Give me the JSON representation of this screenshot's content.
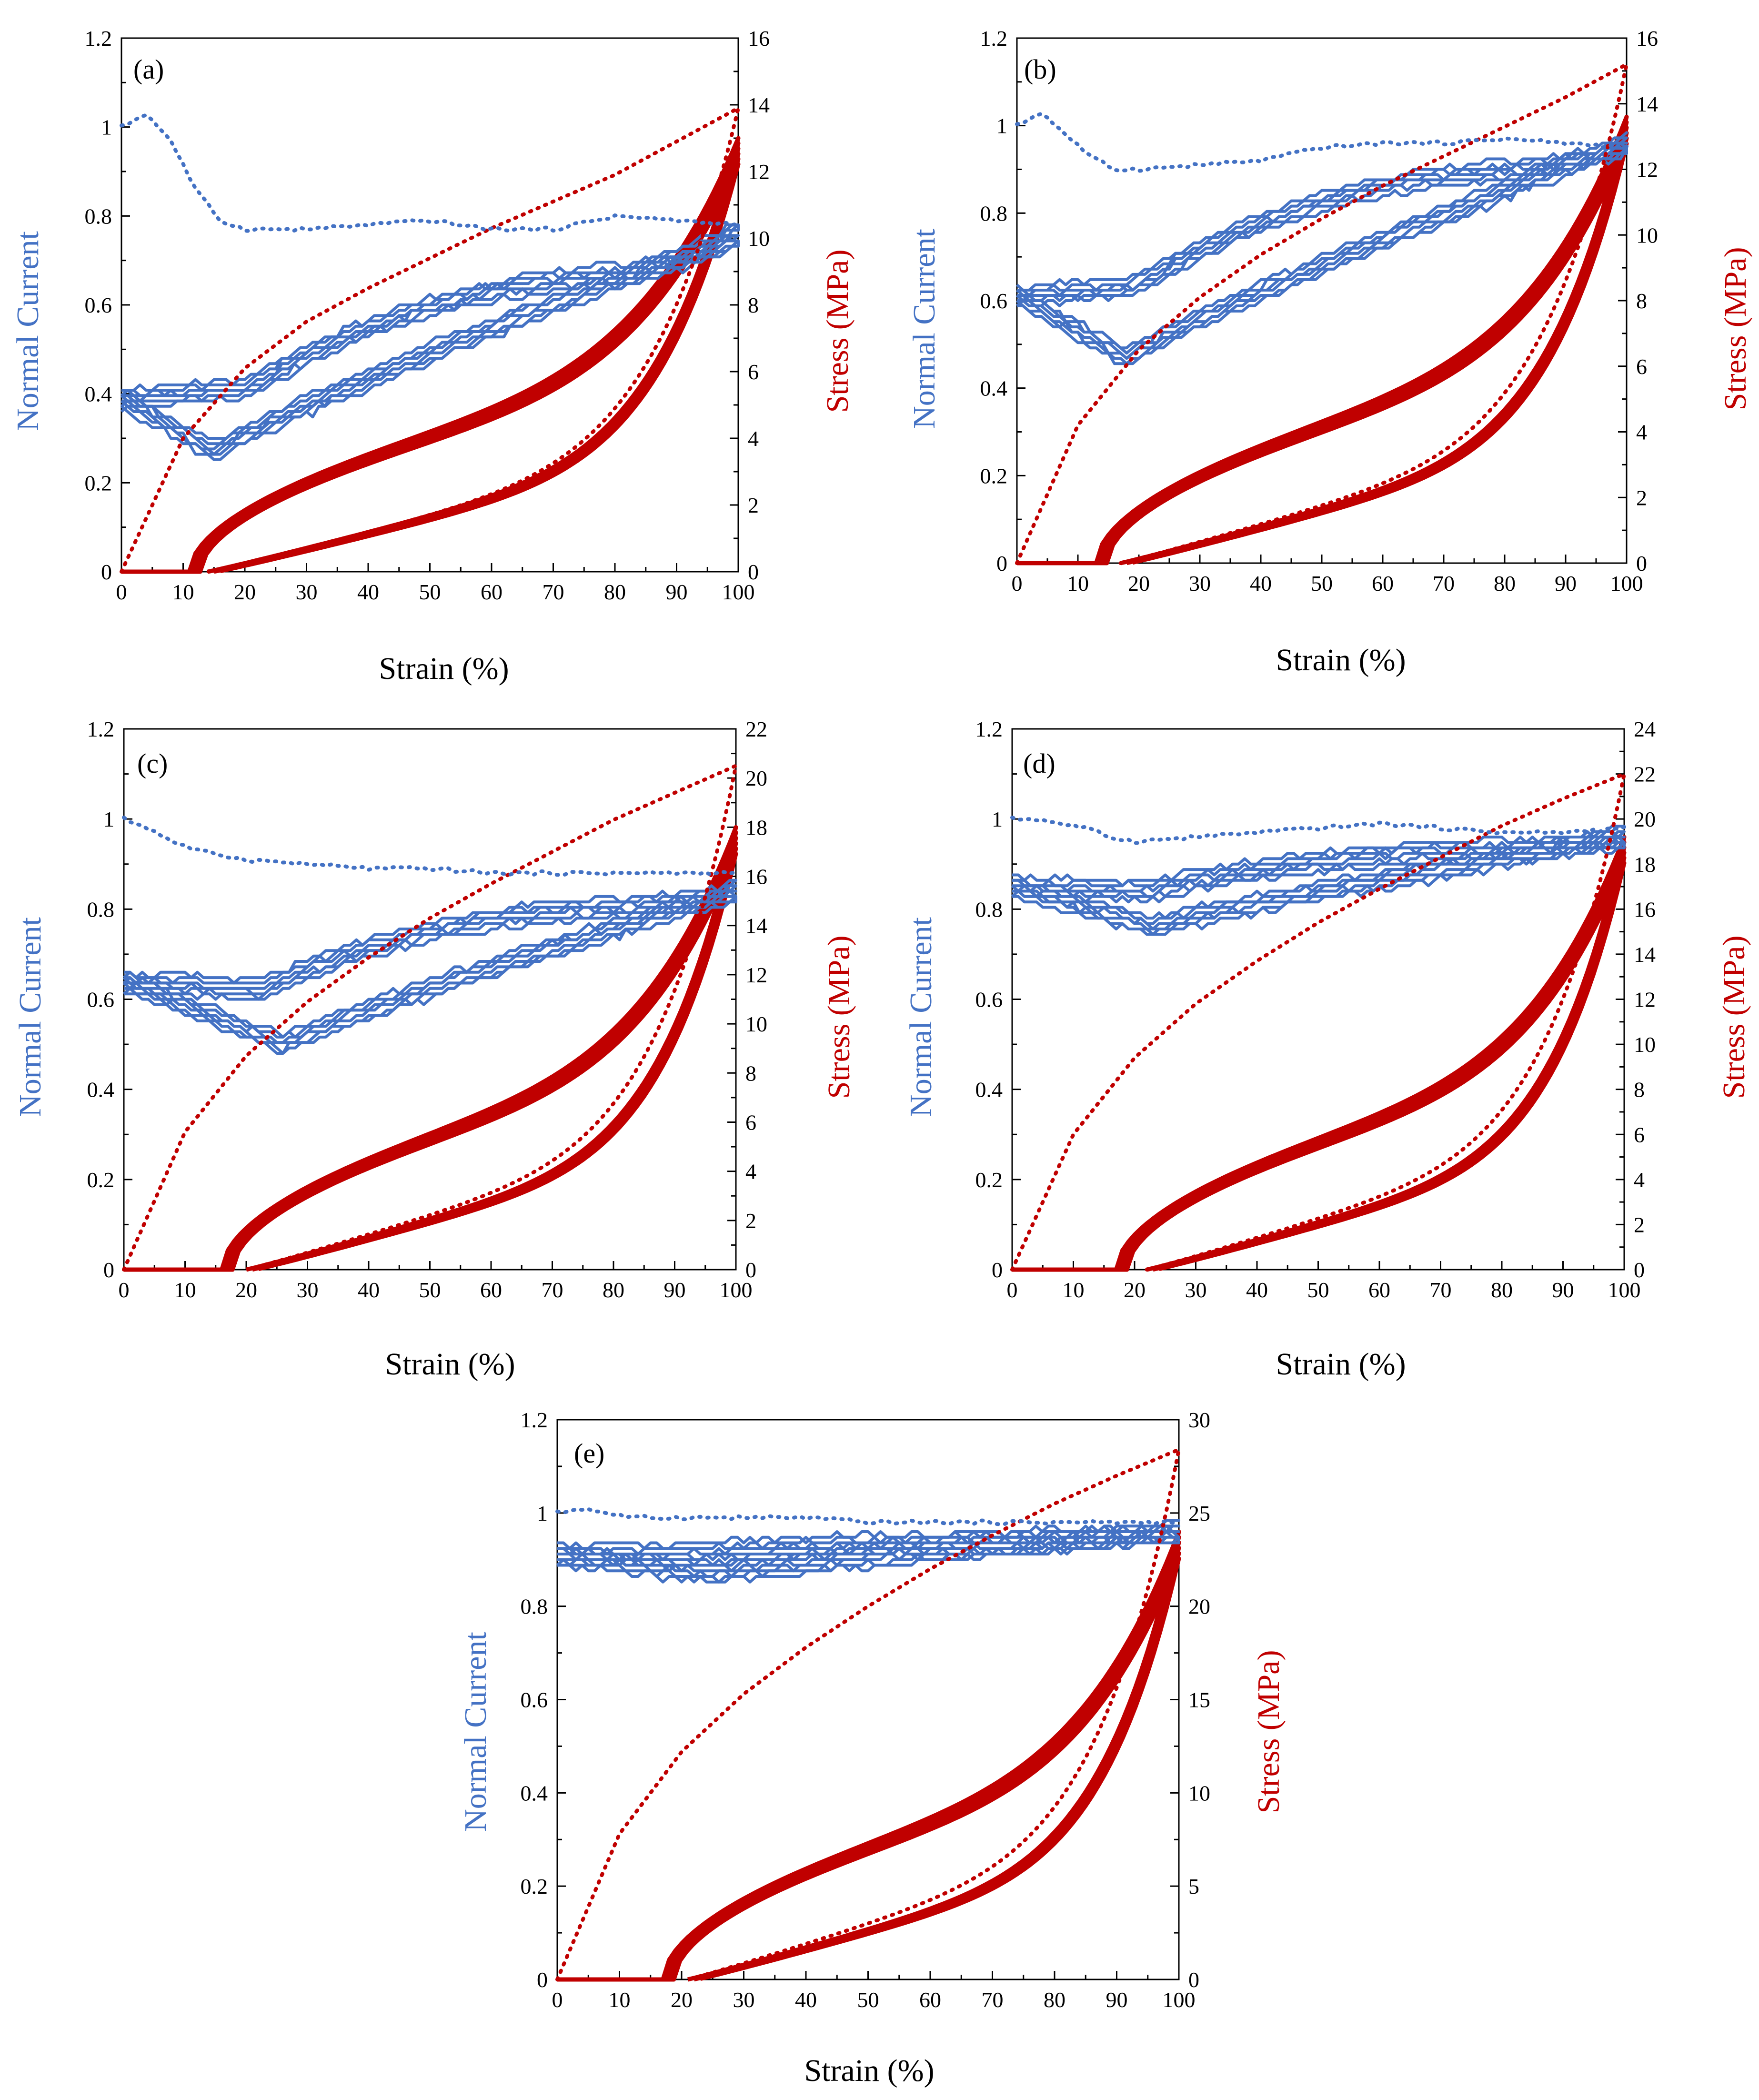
{
  "figure": {
    "x_axis_title": "Strain (%)",
    "left_axis_title": "Normal Current",
    "right_axis_title": "Stress (MPa)",
    "colors": {
      "current": "#4472C4",
      "stress": "#C00000",
      "axis": "#000000"
    }
  },
  "chart_data": [
    {
      "type": "line",
      "panel_label": "(a)",
      "xlabel": "Strain (%)",
      "ylabel": "Normal Current",
      "y2label": "Stress (MPa)",
      "xlim": [
        0,
        100
      ],
      "ylim": [
        0,
        1.2
      ],
      "y2lim": [
        0,
        16
      ],
      "x_ticks": [
        0,
        10,
        20,
        30,
        40,
        50,
        60,
        70,
        80,
        90,
        100
      ],
      "y_ticks": [
        "0",
        "0.2",
        "0.4",
        "0.6",
        "0.8",
        "1",
        "1.2"
      ],
      "y2_ticks": [
        "0",
        "2",
        "4",
        "6",
        "8",
        "10",
        "12",
        "14",
        "16"
      ],
      "params": {
        "stress_first_peak": 13.9,
        "stress_peak": 13.0,
        "stress_onset": 11,
        "stress_release": 14,
        "current_first_start": 1.0,
        "current_first_min": 0.76,
        "current_first_end": 0.78,
        "current_start": 0.39,
        "current_load_min": 0.41,
        "current_unload_min": 0.27,
        "current_peak": 0.76,
        "current_plateau": 0.66,
        "min_strain": 20,
        "unload_min_strain": 15
      },
      "series": [
        {
          "name": "Normal current, first cycle",
          "axis": "left",
          "style": "dotted",
          "x": [
            0,
            4,
            8,
            12,
            16,
            20,
            30,
            40,
            50,
            60,
            70,
            80,
            90,
            100
          ],
          "values": [
            1.0,
            1.03,
            0.97,
            0.86,
            0.79,
            0.77,
            0.77,
            0.78,
            0.79,
            0.77,
            0.77,
            0.8,
            0.79,
            0.78
          ]
        },
        {
          "name": "Stress, first cycle",
          "axis": "right",
          "style": "dotted",
          "x": [
            0,
            10,
            20,
            30,
            40,
            50,
            60,
            70,
            80,
            90,
            100
          ],
          "values": [
            0,
            4.0,
            6.1,
            7.5,
            8.5,
            9.4,
            10.3,
            11.1,
            11.9,
            12.9,
            13.9
          ]
        },
        {
          "name": "Normal current, cycles 2-10",
          "axis": "left",
          "style": "solid",
          "cycles": 6
        },
        {
          "name": "Stress, cycles 2-10",
          "axis": "right",
          "style": "solid",
          "cycles": 6
        }
      ]
    },
    {
      "type": "line",
      "panel_label": "(b)",
      "xlabel": "Strain (%)",
      "ylabel": "Normal Current",
      "y2label": "Stress (MPa)",
      "xlim": [
        0,
        100
      ],
      "ylim": [
        0,
        1.2
      ],
      "y2lim": [
        0,
        16
      ],
      "x_ticks": [
        0,
        10,
        20,
        30,
        40,
        50,
        60,
        70,
        80,
        90,
        100
      ],
      "y_ticks": [
        "0",
        "0.2",
        "0.4",
        "0.6",
        "0.8",
        "1",
        "1.2"
      ],
      "y2_ticks": [
        "0",
        "2",
        "4",
        "6",
        "8",
        "10",
        "12",
        "14",
        "16"
      ],
      "params": {
        "stress_first_peak": 15.2,
        "stress_peak": 13.6,
        "stress_onset": 13,
        "stress_release": 17,
        "current_first_start": 1.0,
        "current_first_min": 0.9,
        "current_first_end": 0.95,
        "current_start": 0.61,
        "current_load_min": 0.63,
        "current_unload_min": 0.47,
        "current_peak": 0.96,
        "current_plateau": 0.89,
        "min_strain": 19,
        "unload_min_strain": 18
      },
      "series": [
        {
          "name": "Normal current, first cycle",
          "axis": "left",
          "style": "dotted",
          "x": [
            0,
            4,
            8,
            12,
            16,
            20,
            30,
            40,
            50,
            60,
            70,
            80,
            90,
            100
          ],
          "values": [
            1.0,
            1.03,
            0.98,
            0.93,
            0.9,
            0.9,
            0.91,
            0.92,
            0.95,
            0.96,
            0.96,
            0.97,
            0.96,
            0.95
          ]
        },
        {
          "name": "Stress, first cycle",
          "axis": "right",
          "style": "dotted",
          "x": [
            0,
            10,
            20,
            30,
            40,
            50,
            60,
            70,
            80,
            90,
            100
          ],
          "values": [
            0,
            4.2,
            6.5,
            8.1,
            9.4,
            10.5,
            11.5,
            12.4,
            13.3,
            14.2,
            15.2
          ]
        },
        {
          "name": "Normal current, cycles 2-10",
          "axis": "left",
          "style": "solid",
          "cycles": 6
        },
        {
          "name": "Stress, cycles 2-10",
          "axis": "right",
          "style": "solid",
          "cycles": 6
        }
      ]
    },
    {
      "type": "line",
      "panel_label": "(c)",
      "xlabel": "Strain (%)",
      "ylabel": "Normal Current",
      "y2label": "Stress (MPa)",
      "xlim": [
        0,
        100
      ],
      "ylim": [
        0,
        1.2
      ],
      "y2lim": [
        0,
        22
      ],
      "x_ticks": [
        0,
        10,
        20,
        30,
        40,
        50,
        60,
        70,
        80,
        90,
        100
      ],
      "y_ticks": [
        "0",
        "0.2",
        "0.4",
        "0.6",
        "0.8",
        "1",
        "1.2"
      ],
      "y2_ticks": [
        "0",
        "2",
        "4",
        "6",
        "8",
        "10",
        "12",
        "14",
        "16",
        "18",
        "20",
        "22"
      ],
      "params": {
        "stress_first_peak": 20.5,
        "stress_peak": 18.0,
        "stress_onset": 16,
        "stress_release": 20,
        "current_first_start": 1.0,
        "current_first_min": 0.88,
        "current_first_end": 0.88,
        "current_start": 0.64,
        "current_load_min": 0.62,
        "current_unload_min": 0.5,
        "current_peak": 0.84,
        "current_plateau": 0.8,
        "min_strain": 22,
        "unload_min_strain": 26
      },
      "series": [
        {
          "name": "Normal current, first cycle",
          "axis": "left",
          "style": "dotted",
          "x": [
            0,
            4,
            8,
            12,
            16,
            20,
            30,
            40,
            50,
            60,
            70,
            80,
            90,
            100
          ],
          "values": [
            1.0,
            0.98,
            0.95,
            0.93,
            0.92,
            0.91,
            0.9,
            0.89,
            0.89,
            0.88,
            0.88,
            0.88,
            0.88,
            0.88
          ]
        },
        {
          "name": "Stress, first cycle",
          "axis": "right",
          "style": "dotted",
          "x": [
            0,
            10,
            20,
            30,
            40,
            50,
            60,
            70,
            80,
            90,
            100
          ],
          "values": [
            0,
            5.6,
            8.7,
            10.9,
            12.7,
            14.3,
            15.7,
            17.0,
            18.3,
            19.4,
            20.5
          ]
        },
        {
          "name": "Normal current, cycles 2-10",
          "axis": "left",
          "style": "solid",
          "cycles": 6
        },
        {
          "name": "Stress, cycles 2-10",
          "axis": "right",
          "style": "solid",
          "cycles": 6
        }
      ]
    },
    {
      "type": "line",
      "panel_label": "(d)",
      "xlabel": "Strain (%)",
      "ylabel": "Normal Current",
      "y2label": "Stress (MPa)",
      "xlim": [
        0,
        100
      ],
      "ylim": [
        0,
        1.2
      ],
      "y2lim": [
        0,
        24
      ],
      "x_ticks": [
        0,
        10,
        20,
        30,
        40,
        50,
        60,
        70,
        80,
        90,
        100
      ],
      "y_ticks": [
        "0",
        "0.2",
        "0.4",
        "0.6",
        "0.8",
        "1",
        "1.2"
      ],
      "y2_ticks": [
        "0",
        "2",
        "4",
        "6",
        "8",
        "10",
        "12",
        "14",
        "16",
        "18",
        "20",
        "22",
        "24"
      ],
      "params": {
        "stress_first_peak": 22.0,
        "stress_peak": 19.2,
        "stress_onset": 17,
        "stress_release": 22,
        "current_first_start": 1.0,
        "current_first_min": 0.96,
        "current_first_end": 0.98,
        "current_start": 0.85,
        "current_load_min": 0.84,
        "current_unload_min": 0.76,
        "current_peak": 0.96,
        "current_plateau": 0.93,
        "min_strain": 22,
        "unload_min_strain": 23
      },
      "series": [
        {
          "name": "Normal current, first cycle",
          "axis": "left",
          "style": "dotted",
          "x": [
            0,
            4,
            8,
            12,
            16,
            20,
            30,
            40,
            50,
            60,
            70,
            80,
            90,
            100
          ],
          "values": [
            1.0,
            1.0,
            0.99,
            0.98,
            0.96,
            0.95,
            0.96,
            0.97,
            0.98,
            0.99,
            0.98,
            0.97,
            0.97,
            0.98
          ]
        },
        {
          "name": "Stress, first cycle",
          "axis": "right",
          "style": "dotted",
          "x": [
            0,
            10,
            20,
            30,
            40,
            50,
            60,
            70,
            80,
            90,
            100
          ],
          "values": [
            0,
            6.0,
            9.4,
            11.8,
            13.7,
            15.4,
            16.9,
            18.3,
            19.7,
            20.9,
            22.0
          ]
        },
        {
          "name": "Normal current, cycles 2-10",
          "axis": "left",
          "style": "solid",
          "cycles": 6
        },
        {
          "name": "Stress, cycles 2-10",
          "axis": "right",
          "style": "solid",
          "cycles": 6
        }
      ]
    },
    {
      "type": "line",
      "panel_label": "(e)",
      "xlabel": "Strain (%)",
      "ylabel": "Normal Current",
      "y2label": "Stress (MPa)",
      "xlim": [
        0,
        100
      ],
      "ylim": [
        0,
        1.2
      ],
      "y2lim": [
        0,
        30
      ],
      "x_ticks": [
        0,
        10,
        20,
        30,
        40,
        50,
        60,
        70,
        80,
        90,
        100
      ],
      "y_ticks": [
        "0",
        "0.2",
        "0.4",
        "0.6",
        "0.8",
        "1",
        "1.2"
      ],
      "y2_ticks": [
        "0",
        "5",
        "10",
        "15",
        "20",
        "25",
        "30"
      ],
      "params": {
        "stress_first_peak": 28.4,
        "stress_peak": 24.0,
        "stress_onset": 17,
        "stress_release": 21,
        "current_first_start": 1.0,
        "current_first_min": 0.98,
        "current_first_end": 0.98,
        "current_start": 0.91,
        "current_load_min": 0.91,
        "current_unload_min": 0.87,
        "current_peak": 0.96,
        "current_plateau": 0.94,
        "min_strain": 20,
        "unload_min_strain": 25
      },
      "series": [
        {
          "name": "Normal current, first cycle",
          "axis": "left",
          "style": "dotted",
          "x": [
            0,
            4,
            8,
            12,
            16,
            20,
            30,
            40,
            50,
            60,
            70,
            80,
            90,
            100
          ],
          "values": [
            1.0,
            1.01,
            1.0,
            0.99,
            0.99,
            0.99,
            0.99,
            0.99,
            0.98,
            0.98,
            0.98,
            0.98,
            0.98,
            0.98
          ]
        },
        {
          "name": "Stress, first cycle",
          "axis": "right",
          "style": "dotted",
          "x": [
            0,
            10,
            20,
            30,
            40,
            50,
            60,
            70,
            80,
            90,
            100
          ],
          "values": [
            0,
            7.8,
            12.2,
            15.3,
            17.8,
            20.0,
            22.0,
            23.8,
            25.5,
            27.0,
            28.4
          ]
        },
        {
          "name": "Normal current, cycles 2-10",
          "axis": "left",
          "style": "solid",
          "cycles": 6
        },
        {
          "name": "Stress, cycles 2-10",
          "axis": "right",
          "style": "solid",
          "cycles": 6
        }
      ]
    }
  ]
}
